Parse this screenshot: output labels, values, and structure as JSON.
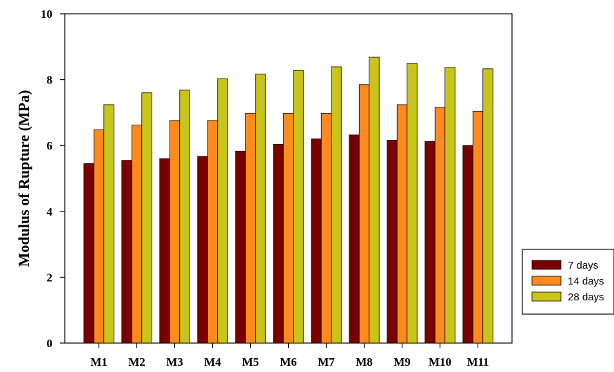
{
  "chart_data": {
    "type": "bar",
    "title": "",
    "xlabel": "",
    "ylabel": "Modulus of Rupture  (MPa)",
    "ylim": [
      0,
      10
    ],
    "yticks": [
      0,
      2,
      4,
      6,
      8,
      10
    ],
    "grid": false,
    "legend_position": "right",
    "categories": [
      "M1",
      "M2",
      "M3",
      "M4",
      "M5",
      "M6",
      "M7",
      "M8",
      "M9",
      "M10",
      "M11"
    ],
    "series": [
      {
        "name": "7 days",
        "color": "#7a0000",
        "values": [
          5.45,
          5.55,
          5.6,
          5.67,
          5.83,
          6.04,
          6.2,
          6.32,
          6.16,
          6.12,
          6.0
        ]
      },
      {
        "name": "14 days",
        "color": "#ff8a1e",
        "values": [
          6.48,
          6.62,
          6.76,
          6.76,
          6.98,
          6.98,
          6.98,
          7.85,
          7.24,
          7.16,
          7.04
        ]
      },
      {
        "name": "28 days",
        "color": "#c8c41c",
        "values": [
          7.24,
          7.6,
          7.68,
          8.03,
          8.17,
          8.28,
          8.39,
          8.68,
          8.49,
          8.37,
          8.33
        ]
      }
    ]
  }
}
